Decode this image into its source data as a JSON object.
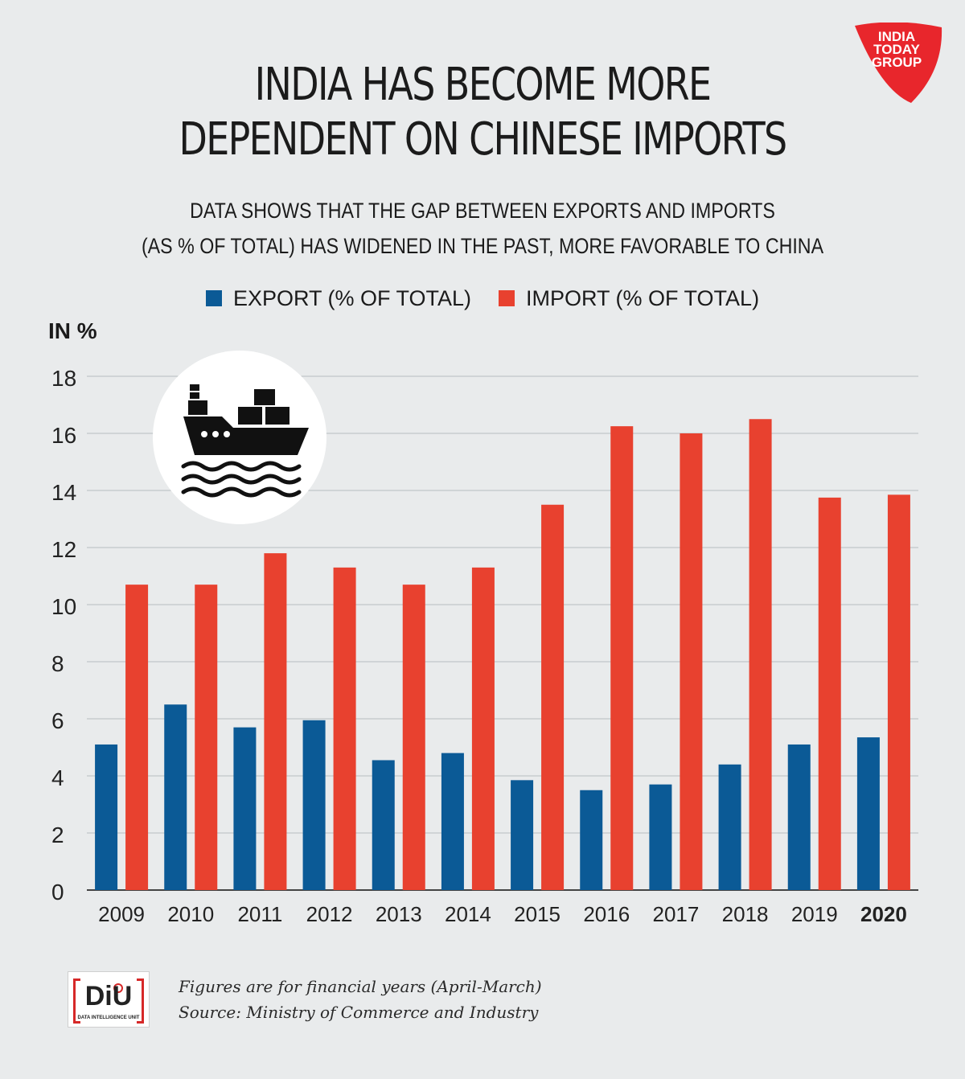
{
  "brand": {
    "logo_lines": [
      "INDIA",
      "TODAY",
      "GROUP"
    ],
    "logo_color": "#e8262c"
  },
  "title_lines": [
    "INDIA HAS BECOME MORE",
    "DEPENDENT ON CHINESE IMPORTS"
  ],
  "subtitle_lines": [
    "DATA SHOWS THAT THE GAP BETWEEN EXPORTS AND IMPORTS",
    "(AS % OF TOTAL)  HAS WIDENED IN THE PAST, MORE FAVORABLE TO CHINA"
  ],
  "chart_data": {
    "type": "bar",
    "ylabel": "IN %",
    "ylim": [
      0,
      18
    ],
    "yticks": [
      0,
      2,
      4,
      6,
      8,
      10,
      12,
      14,
      16,
      18
    ],
    "grid": true,
    "legend_position": "top-center",
    "categories": [
      "2009",
      "2010",
      "2011",
      "2012",
      "2013",
      "2014",
      "2015",
      "2016",
      "2017",
      "2018",
      "2019",
      "2020"
    ],
    "highlight_category": "2020",
    "series": [
      {
        "name": "EXPORT  (% OF TOTAL)",
        "color": "#0b5a96",
        "values": [
          5.1,
          6.5,
          5.7,
          5.95,
          4.55,
          4.8,
          3.85,
          3.5,
          3.7,
          4.4,
          5.1,
          5.35
        ]
      },
      {
        "name": "IMPORT  (% OF TOTAL)",
        "color": "#e8412f",
        "values": [
          10.7,
          10.7,
          11.8,
          11.3,
          10.7,
          11.3,
          13.5,
          16.25,
          16.0,
          16.5,
          13.75,
          13.85
        ]
      }
    ]
  },
  "icon": "cargo-ship-icon",
  "footer": {
    "logo_text": "DiU",
    "logo_subtext": "DATA INTELLIGENCE UNIT",
    "note_lines": [
      "Figures are for financial years (April-March)",
      "Source: Ministry of Commerce and Industry"
    ]
  }
}
